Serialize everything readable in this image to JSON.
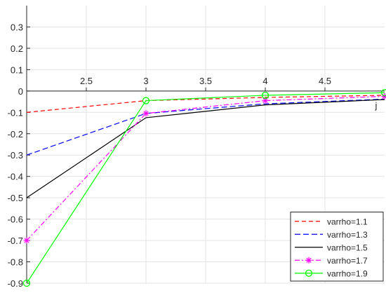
{
  "chart_data": {
    "type": "line",
    "title": "",
    "xlabel": "j",
    "ylabel": "",
    "xlim": [
      2.0,
      5.0
    ],
    "ylim": [
      -0.9,
      0.4
    ],
    "grid": true,
    "legend_placement": "bottom-right",
    "x_ticks": [
      {
        "value": 2.5,
        "label": "2.5"
      },
      {
        "value": 3,
        "label": "3"
      },
      {
        "value": 3.5,
        "label": "3.5"
      },
      {
        "value": 4,
        "label": "4"
      },
      {
        "value": 4.5,
        "label": "4.5"
      }
    ],
    "y_ticks": [
      {
        "value": 0.3,
        "label": "0.3"
      },
      {
        "value": 0.2,
        "label": "0.2"
      },
      {
        "value": 0.1,
        "label": "0.1"
      },
      {
        "value": 0,
        "label": "0"
      },
      {
        "value": -0.1,
        "label": "-0.1"
      },
      {
        "value": -0.2,
        "label": "-0.2"
      },
      {
        "value": -0.3,
        "label": "-0.3"
      },
      {
        "value": -0.4,
        "label": "-0.4"
      },
      {
        "value": -0.5,
        "label": "-0.5"
      },
      {
        "value": -0.6,
        "label": "-0.6"
      },
      {
        "value": -0.7,
        "label": "-0.7"
      },
      {
        "value": -0.8,
        "label": "-0.8"
      },
      {
        "value": -0.9,
        "label": "-0.9"
      }
    ],
    "x": [
      2,
      3,
      4,
      5
    ],
    "series": [
      {
        "name": "varrho=1.1",
        "color": "#ff0000",
        "dash": "6,4",
        "marker": "none",
        "values": [
          -0.1,
          -0.045,
          -0.03,
          -0.02
        ]
      },
      {
        "name": "varrho=1.3",
        "color": "#0000ff",
        "dash": "8,4",
        "marker": "none",
        "values": [
          -0.3,
          -0.105,
          -0.06,
          -0.038
        ]
      },
      {
        "name": "varrho=1.5",
        "color": "#000000",
        "dash": "",
        "marker": "none",
        "values": [
          -0.5,
          -0.125,
          -0.065,
          -0.04
        ]
      },
      {
        "name": "varrho=1.7",
        "color": "#ff00ff",
        "dash": "7,3,2,3",
        "marker": "star",
        "values": [
          -0.7,
          -0.105,
          -0.045,
          -0.025
        ]
      },
      {
        "name": "varrho=1.9",
        "color": "#00ff00",
        "dash": "",
        "marker": "circle",
        "values": [
          -0.9,
          -0.045,
          -0.02,
          -0.008
        ]
      }
    ]
  }
}
